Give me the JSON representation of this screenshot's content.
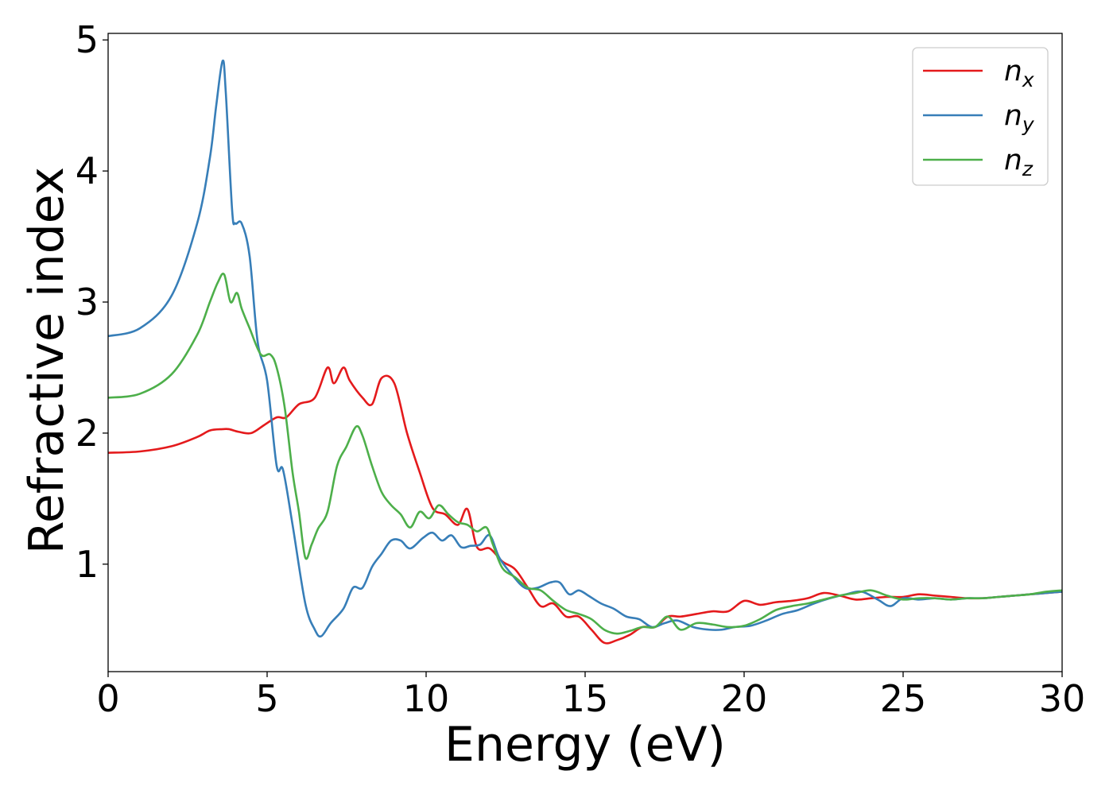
{
  "chart_data": {
    "type": "line",
    "title": "",
    "xlabel": "Energy (eV)",
    "ylabel": "Refractive index",
    "xlim": [
      0,
      30
    ],
    "ylim": [
      0.18,
      5.05
    ],
    "xticks": [
      0,
      5,
      10,
      15,
      20,
      25,
      30
    ],
    "xtick_labels": [
      "0",
      "5",
      "10",
      "15",
      "20",
      "25",
      "30"
    ],
    "yticks": [
      1,
      2,
      3,
      4,
      5
    ],
    "ytick_labels": [
      "1",
      "2",
      "3",
      "4",
      "5"
    ],
    "grid": false,
    "legend_position": "top-right",
    "series": [
      {
        "name": "n",
        "subscript": "x",
        "color": "#e41a1c",
        "x": [
          0,
          1,
          2,
          2.8,
          3.2,
          3.6,
          3.8,
          4.1,
          4.5,
          4.9,
          5.3,
          5.6,
          6.0,
          6.5,
          6.9,
          7.1,
          7.4,
          7.6,
          8.0,
          8.3,
          8.6,
          9.0,
          9.4,
          9.8,
          10.2,
          10.6,
          11.0,
          11.3,
          11.6,
          12.0,
          12.4,
          12.8,
          13.2,
          13.6,
          14.0,
          14.4,
          14.8,
          15.2,
          15.6,
          16.0,
          16.4,
          16.8,
          17.2,
          17.6,
          18.0,
          18.5,
          19.0,
          19.5,
          20.0,
          20.5,
          21.0,
          21.5,
          22.0,
          22.5,
          23.0,
          23.5,
          24.0,
          24.5,
          25.0,
          25.5,
          26.0,
          26.5,
          27.0,
          27.5,
          28.0,
          28.5,
          29.0,
          29.5,
          30.0
        ],
        "y": [
          1.85,
          1.86,
          1.9,
          1.97,
          2.02,
          2.03,
          2.03,
          2.01,
          2.0,
          2.06,
          2.12,
          2.12,
          2.22,
          2.27,
          2.5,
          2.38,
          2.5,
          2.4,
          2.27,
          2.22,
          2.42,
          2.38,
          2.0,
          1.7,
          1.43,
          1.38,
          1.3,
          1.42,
          1.13,
          1.12,
          1.02,
          0.96,
          0.82,
          0.68,
          0.7,
          0.6,
          0.6,
          0.5,
          0.4,
          0.42,
          0.46,
          0.52,
          0.52,
          0.6,
          0.6,
          0.62,
          0.64,
          0.64,
          0.72,
          0.69,
          0.71,
          0.72,
          0.74,
          0.78,
          0.76,
          0.73,
          0.74,
          0.75,
          0.75,
          0.77,
          0.76,
          0.75,
          0.74,
          0.74,
          0.75,
          0.76,
          0.77,
          0.78,
          0.79
        ]
      },
      {
        "name": "n",
        "subscript": "y",
        "color": "#377eb8",
        "x": [
          0,
          1,
          2,
          2.8,
          3.2,
          3.4,
          3.6,
          3.7,
          3.9,
          4.0,
          4.2,
          4.45,
          4.7,
          5.0,
          5.3,
          5.5,
          5.8,
          6.2,
          6.5,
          6.7,
          7.0,
          7.4,
          7.7,
          8.0,
          8.3,
          8.6,
          8.9,
          9.2,
          9.5,
          9.9,
          10.2,
          10.5,
          10.8,
          11.1,
          11.4,
          11.7,
          12.0,
          12.3,
          12.7,
          13.1,
          13.5,
          13.9,
          14.2,
          14.5,
          14.8,
          15.1,
          15.5,
          15.9,
          16.3,
          16.7,
          17.1,
          17.5,
          17.9,
          18.4,
          18.9,
          19.3,
          19.7,
          20.2,
          20.7,
          21.2,
          21.7,
          22.2,
          22.7,
          23.2,
          23.7,
          24.2,
          24.6,
          25.0,
          25.5,
          26.0,
          26.5,
          27.0,
          27.5,
          28.0,
          28.5,
          29.0,
          29.5,
          30.0
        ],
        "y": [
          2.74,
          2.8,
          3.05,
          3.6,
          4.1,
          4.5,
          4.84,
          4.6,
          3.7,
          3.6,
          3.6,
          3.35,
          2.7,
          2.4,
          1.75,
          1.72,
          1.3,
          0.7,
          0.5,
          0.45,
          0.55,
          0.66,
          0.82,
          0.82,
          0.98,
          1.08,
          1.18,
          1.18,
          1.12,
          1.2,
          1.24,
          1.18,
          1.22,
          1.13,
          1.14,
          1.15,
          1.22,
          1.05,
          0.92,
          0.82,
          0.82,
          0.86,
          0.86,
          0.77,
          0.8,
          0.76,
          0.7,
          0.66,
          0.6,
          0.58,
          0.52,
          0.55,
          0.57,
          0.52,
          0.5,
          0.5,
          0.52,
          0.53,
          0.57,
          0.62,
          0.65,
          0.7,
          0.74,
          0.77,
          0.79,
          0.73,
          0.68,
          0.74,
          0.73,
          0.74,
          0.73,
          0.74,
          0.74,
          0.75,
          0.76,
          0.77,
          0.78,
          0.79
        ]
      },
      {
        "name": "n",
        "subscript": "z",
        "color": "#4daf4a",
        "x": [
          0,
          1,
          2,
          2.8,
          3.2,
          3.45,
          3.65,
          3.85,
          4.05,
          4.2,
          4.45,
          4.8,
          5.1,
          5.3,
          5.55,
          5.8,
          6.0,
          6.2,
          6.4,
          6.6,
          6.9,
          7.2,
          7.5,
          7.8,
          8.0,
          8.3,
          8.6,
          8.9,
          9.2,
          9.5,
          9.8,
          10.1,
          10.4,
          10.7,
          11.0,
          11.3,
          11.6,
          11.9,
          12.1,
          12.4,
          12.8,
          13.2,
          13.6,
          14.0,
          14.4,
          14.8,
          15.2,
          15.6,
          16.0,
          16.4,
          16.8,
          17.2,
          17.6,
          18.0,
          18.5,
          19.0,
          19.5,
          20.0,
          20.5,
          21.0,
          21.5,
          22.0,
          22.5,
          23.0,
          23.5,
          24.0,
          24.5,
          25.0,
          25.5,
          26.0,
          26.5,
          27.0,
          27.5,
          28.0,
          28.5,
          29.0,
          29.5,
          30.0
        ],
        "y": [
          2.27,
          2.3,
          2.45,
          2.75,
          3.0,
          3.15,
          3.21,
          3.0,
          3.07,
          2.95,
          2.8,
          2.6,
          2.6,
          2.5,
          2.2,
          1.7,
          1.4,
          1.05,
          1.15,
          1.27,
          1.4,
          1.75,
          1.9,
          2.05,
          1.98,
          1.75,
          1.55,
          1.45,
          1.38,
          1.28,
          1.4,
          1.35,
          1.45,
          1.38,
          1.32,
          1.3,
          1.25,
          1.28,
          1.15,
          0.97,
          0.9,
          0.82,
          0.8,
          0.72,
          0.65,
          0.62,
          0.58,
          0.5,
          0.47,
          0.49,
          0.52,
          0.52,
          0.6,
          0.5,
          0.55,
          0.54,
          0.52,
          0.53,
          0.58,
          0.65,
          0.68,
          0.7,
          0.73,
          0.76,
          0.78,
          0.8,
          0.76,
          0.73,
          0.74,
          0.74,
          0.73,
          0.74,
          0.74,
          0.75,
          0.76,
          0.77,
          0.79,
          0.8
        ]
      }
    ]
  }
}
